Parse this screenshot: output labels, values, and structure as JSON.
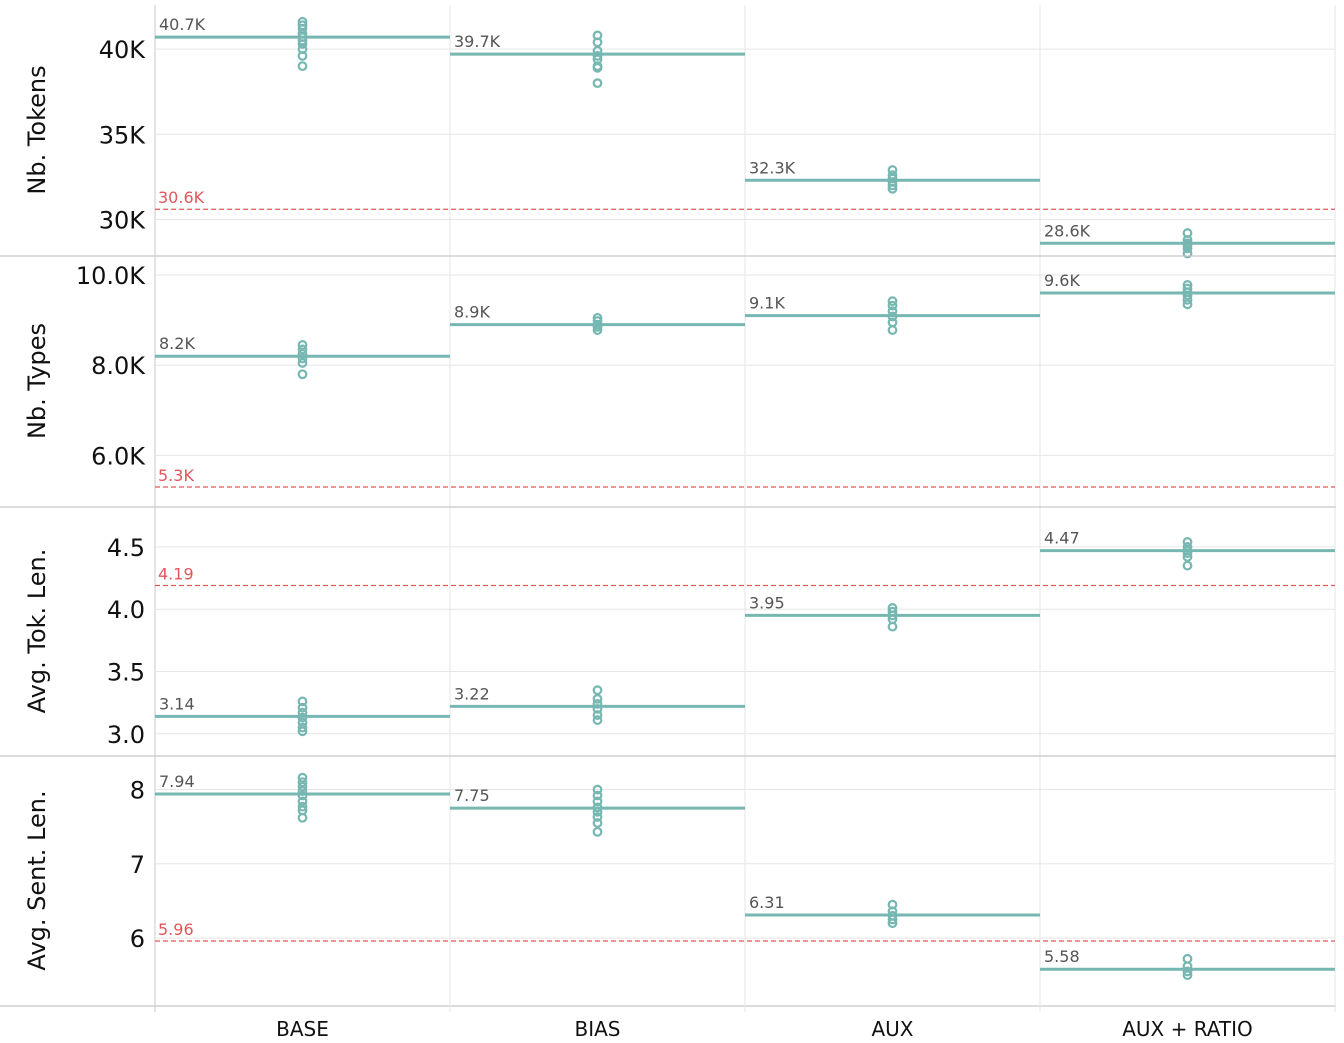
{
  "colors": {
    "series": "#76b7b2",
    "reference": "#e15759",
    "grid": "#e6e6e6",
    "frame": "#c8c8c8"
  },
  "chart_data": {
    "type": "scatter",
    "categories": [
      "BASE",
      "BIAS",
      "AUX",
      "AUX + RATIO"
    ],
    "panels": [
      {
        "ylabel": "Nb. Tokens",
        "ylim": [
          28500,
          42000
        ],
        "ticks": [
          30000,
          35000,
          40000
        ],
        "tick_labels": [
          "30K",
          "35K",
          "40K"
        ],
        "reference": {
          "value": 30600,
          "label": "30.6K"
        },
        "means": [
          {
            "value": 40700,
            "label": "40.7K"
          },
          {
            "value": 39700,
            "label": "39.7K"
          },
          {
            "value": 32300,
            "label": "32.3K"
          },
          {
            "value": 28600,
            "label": "28.6K"
          }
        ],
        "points": [
          [
            41600,
            41400,
            41200,
            40900,
            40700,
            40500,
            40300,
            40000,
            39600,
            39000
          ],
          [
            40800,
            40400,
            39900,
            39600,
            39400,
            39000,
            38900,
            38000
          ],
          [
            32900,
            32600,
            32400,
            32200,
            32000,
            31800
          ],
          [
            29200,
            28800,
            28600,
            28500,
            28300,
            28000
          ]
        ]
      },
      {
        "ylabel": "Nb. Types",
        "ylim": [
          5100,
          10200
        ],
        "ticks": [
          6000,
          8000,
          10000
        ],
        "tick_labels": [
          "6.0K",
          "8.0K",
          "10.0K"
        ],
        "reference": {
          "value": 5300,
          "label": "5.3K"
        },
        "means": [
          {
            "value": 8200,
            "label": "8.2K"
          },
          {
            "value": 8900,
            "label": "8.9K"
          },
          {
            "value": 9100,
            "label": "9.1K"
          },
          {
            "value": 9600,
            "label": "9.6K"
          }
        ],
        "points": [
          [
            8450,
            8350,
            8250,
            8150,
            8050,
            7800
          ],
          [
            9050,
            8980,
            8900,
            8850,
            8780
          ],
          [
            9420,
            9320,
            9200,
            9080,
            8950,
            8780
          ],
          [
            9780,
            9700,
            9620,
            9550,
            9450,
            9350
          ]
        ]
      },
      {
        "ylabel": "Avg. Tok. Len.",
        "ylim": [
          2.95,
          4.7
        ],
        "ticks": [
          3.0,
          3.5,
          4.0,
          4.5
        ],
        "tick_labels": [
          "3.0",
          "3.5",
          "4.0",
          "4.5"
        ],
        "reference": {
          "value": 4.19,
          "label": "4.19"
        },
        "means": [
          {
            "value": 3.14,
            "label": "3.14"
          },
          {
            "value": 3.22,
            "label": "3.22"
          },
          {
            "value": 3.95,
            "label": "3.95"
          },
          {
            "value": 4.47,
            "label": "4.47"
          }
        ],
        "points": [
          [
            3.26,
            3.21,
            3.17,
            3.13,
            3.09,
            3.05,
            3.02
          ],
          [
            3.35,
            3.28,
            3.24,
            3.2,
            3.15,
            3.11
          ],
          [
            4.01,
            3.98,
            3.95,
            3.92,
            3.86
          ],
          [
            4.54,
            4.5,
            4.47,
            4.45,
            4.42,
            4.35
          ]
        ]
      },
      {
        "ylabel": "Avg. Sent. Len.",
        "ylim": [
          5.3,
          8.25
        ],
        "ticks": [
          6,
          7,
          8
        ],
        "tick_labels": [
          "6",
          "7",
          "8"
        ],
        "reference": {
          "value": 5.96,
          "label": "5.96"
        },
        "means": [
          {
            "value": 7.94,
            "label": "7.94"
          },
          {
            "value": 7.75,
            "label": "7.75"
          },
          {
            "value": 6.31,
            "label": "6.31"
          },
          {
            "value": 5.58,
            "label": "5.58"
          }
        ],
        "points": [
          [
            8.16,
            8.1,
            8.04,
            7.98,
            7.92,
            7.84,
            7.77,
            7.72,
            7.62
          ],
          [
            8.0,
            7.92,
            7.84,
            7.76,
            7.7,
            7.63,
            7.55,
            7.43
          ],
          [
            6.45,
            6.36,
            6.3,
            6.25,
            6.2
          ],
          [
            5.72,
            5.62,
            5.55,
            5.5
          ]
        ]
      }
    ]
  }
}
